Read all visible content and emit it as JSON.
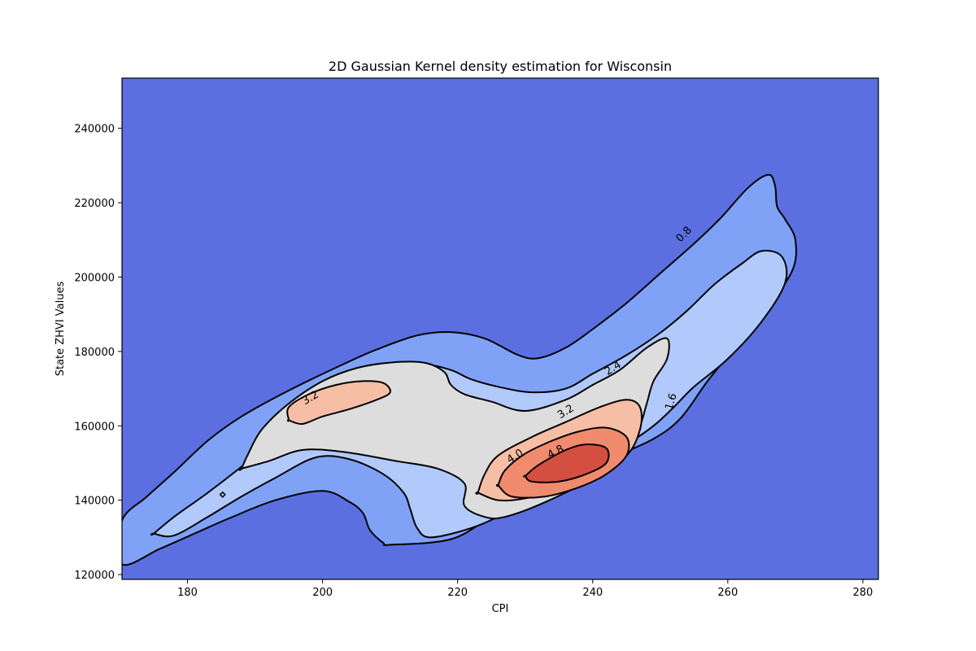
{
  "chart_data": {
    "type": "contour",
    "title": "2D Gaussian Kernel density estimation for Wisconsin",
    "xlabel": "CPI",
    "ylabel": "State ZHVI Values",
    "xlim": [
      170.3,
      282.3
    ],
    "ylim": [
      118700,
      253500
    ],
    "xticks": [
      180,
      200,
      220,
      240,
      260,
      280
    ],
    "xtick_labels": [
      "180",
      "200",
      "220",
      "240",
      "260",
      "280"
    ],
    "yticks": [
      120000,
      140000,
      160000,
      180000,
      200000,
      220000,
      240000
    ],
    "ytick_labels": [
      "120000",
      "140000",
      "160000",
      "180000",
      "200000",
      "220000",
      "240000"
    ],
    "grid": false,
    "colormap": "coolwarm",
    "background_color": "#5b6fe0",
    "contour_levels": [
      {
        "level": 0.8,
        "label": "0.8",
        "fill": "#7fa2f7",
        "paths": [
          [
            [
              170.3,
              134500
            ],
            [
              174,
              141000
            ],
            [
              178,
              147500
            ],
            [
              183,
              156000
            ],
            [
              188,
              162500
            ],
            [
              195,
              169500
            ],
            [
              203,
              176500
            ],
            [
              208,
              180500
            ],
            [
              214,
              184300
            ],
            [
              219,
              185200
            ],
            [
              224,
              183500
            ],
            [
              229,
              179000
            ],
            [
              232,
              178200
            ],
            [
              236,
              181000
            ],
            [
              240,
              186000
            ],
            [
              245,
              193000
            ],
            [
              250,
              201000
            ],
            [
              255,
              209000
            ],
            [
              259,
              216000
            ],
            [
              263,
              224000
            ],
            [
              266,
              227500
            ],
            [
              267,
              224500
            ],
            [
              267.3,
              219000
            ],
            [
              268.5,
              215500
            ],
            [
              270,
              210000
            ],
            [
              269.5,
              201500
            ],
            [
              265,
              190000
            ],
            [
              261,
              181000
            ],
            [
              257,
              172000
            ],
            [
              253,
              162000
            ],
            [
              249,
              156500
            ],
            [
              243,
              151500
            ],
            [
              236,
              145500
            ],
            [
              230,
              139500
            ],
            [
              225,
              135500
            ],
            [
              219,
              129500
            ],
            [
              210,
              128000
            ],
            [
              209,
              128500
            ],
            [
              207,
              132000
            ],
            [
              206,
              136500
            ],
            [
              204,
              139500
            ],
            [
              200,
              142500
            ],
            [
              193,
              140000
            ],
            [
              186,
              135000
            ],
            [
              181,
              131000
            ],
            [
              176,
              127000
            ],
            [
              170.3,
              122800
            ]
          ]
        ]
      },
      {
        "level": 1.6,
        "label": "1.6",
        "fill": "#b2c9fb",
        "paths": [
          [
            [
              175,
              131000
            ],
            [
              178,
              135500
            ],
            [
              183,
              142000
            ],
            [
              188,
              149000
            ],
            [
              194,
              158000
            ],
            [
              200,
              166000
            ],
            [
              205,
              172000
            ],
            [
              210,
              175500
            ],
            [
              215,
              176500
            ],
            [
              219,
              175000
            ],
            [
              222,
              172500
            ],
            [
              226,
              170500
            ],
            [
              231,
              169000
            ],
            [
              236,
              170000
            ],
            [
              240,
              174000
            ],
            [
              245,
              179000
            ],
            [
              250,
              185000
            ],
            [
              254,
              191000
            ],
            [
              258,
              198000
            ],
            [
              262,
              203500
            ],
            [
              265,
              207000
            ],
            [
              268,
              205500
            ],
            [
              268.5,
              198500
            ],
            [
              265,
              188000
            ],
            [
              260,
              178000
            ],
            [
              255,
              170500
            ],
            [
              252,
              165000
            ],
            [
              249,
              160000
            ],
            [
              245,
              155000
            ],
            [
              239,
              149000
            ],
            [
              233,
              142500
            ],
            [
              227,
              136500
            ],
            [
              222,
              132500
            ],
            [
              216,
              130000
            ],
            [
              214,
              132500
            ],
            [
              213,
              137500
            ],
            [
              212,
              142000
            ],
            [
              209,
              147000
            ],
            [
              204,
              151000
            ],
            [
              199,
              151500
            ],
            [
              193,
              146000
            ],
            [
              188,
              141000
            ],
            [
              183,
              135500
            ],
            [
              178,
              130500
            ],
            [
              175,
              131000
            ]
          ]
        ]
      },
      {
        "level": 2.4,
        "label": "2.4",
        "fill": "#dddddd",
        "paths": [
          [
            [
              188,
              148500
            ],
            [
              189,
              152500
            ],
            [
              191,
              159000
            ],
            [
              195,
              166000
            ],
            [
              200,
              172000
            ],
            [
              205,
              175500
            ],
            [
              210,
              177000
            ],
            [
              215,
              177000
            ],
            [
              218,
              174500
            ],
            [
              219,
              171000
            ],
            [
              221,
              168500
            ],
            [
              225,
              166500
            ],
            [
              230,
              164000
            ],
            [
              236,
              167000
            ],
            [
              240,
              171000
            ],
            [
              244,
              175000
            ],
            [
              248,
              181000
            ],
            [
              251,
              183500
            ],
            [
              251,
              178000
            ],
            [
              249,
              172000
            ],
            [
              248,
              166000
            ],
            [
              247,
              160000
            ],
            [
              245,
              153000
            ],
            [
              240,
              146000
            ],
            [
              233,
              139500
            ],
            [
              227,
              135500
            ],
            [
              224,
              135500
            ],
            [
              221,
              138500
            ],
            [
              221,
              144500
            ],
            [
              217,
              148500
            ],
            [
              211,
              150500
            ],
            [
              203,
              153000
            ],
            [
              197,
              153500
            ],
            [
              192,
              150500
            ],
            [
              188,
              148500
            ]
          ]
        ]
      },
      {
        "level": 3.2,
        "label": "3.2",
        "fill": "#f6bea5",
        "paths": [
          [
            [
              195,
              161500
            ],
            [
              195,
              165000
            ],
            [
              198,
              168500
            ],
            [
              202,
              171000
            ],
            [
              206,
              172000
            ],
            [
              209,
              171500
            ],
            [
              210,
              169000
            ],
            [
              208,
              167000
            ],
            [
              204,
              164500
            ],
            [
              200,
              162500
            ],
            [
              197,
              160500
            ],
            [
              195,
              161500
            ]
          ],
          [
            [
              223,
              142000
            ],
            [
              224,
              147000
            ],
            [
              226,
              152000
            ],
            [
              231,
              157000
            ],
            [
              236,
              161000
            ],
            [
              241,
              165000
            ],
            [
              245,
              167000
            ],
            [
              247,
              165000
            ],
            [
              247,
              159000
            ],
            [
              245,
              152000
            ],
            [
              240,
              146500
            ],
            [
              235,
              143000
            ],
            [
              230,
              140500
            ],
            [
              226,
              140000
            ],
            [
              223,
              142000
            ]
          ]
        ]
      },
      {
        "level": 4.0,
        "label": "4.0",
        "fill": "#f08b6e",
        "paths": [
          [
            [
              226,
              144000
            ],
            [
              227,
              148000
            ],
            [
              230,
              152500
            ],
            [
              234,
              156000
            ],
            [
              238,
              158500
            ],
            [
              242,
              159500
            ],
            [
              245,
              157000
            ],
            [
              245,
              152000
            ],
            [
              242,
              147000
            ],
            [
              238,
              143500
            ],
            [
              233,
              141000
            ],
            [
              228,
              141000
            ],
            [
              226,
              144000
            ]
          ]
        ]
      },
      {
        "level": 4.8,
        "label": "4.8",
        "fill": "#d44e41",
        "paths": [
          [
            [
              230,
              146500
            ],
            [
              232,
              149500
            ],
            [
              236,
              153500
            ],
            [
              239,
              155000
            ],
            [
              242,
              154000
            ],
            [
              242,
              150000
            ],
            [
              239,
              147000
            ],
            [
              235,
              145000
            ],
            [
              231,
              145000
            ],
            [
              230,
              146500
            ]
          ]
        ]
      }
    ],
    "contour_label_positions": [
      {
        "label": "0.8",
        "x": 253.5,
        "y": 211500,
        "angle": -45
      },
      {
        "label": "2.4",
        "x": 243.0,
        "y": 175500,
        "angle": -32
      },
      {
        "label": "1.6",
        "x": 251.6,
        "y": 166500,
        "angle": -73
      },
      {
        "label": "3.2",
        "x": 198.2,
        "y": 167500,
        "angle": -30
      },
      {
        "label": "3.2",
        "x": 236.0,
        "y": 163800,
        "angle": -32
      },
      {
        "label": "4.0",
        "x": 228.5,
        "y": 151800,
        "angle": -32
      },
      {
        "label": "4.8",
        "x": 234.5,
        "y": 153000,
        "angle": -28
      }
    ]
  }
}
